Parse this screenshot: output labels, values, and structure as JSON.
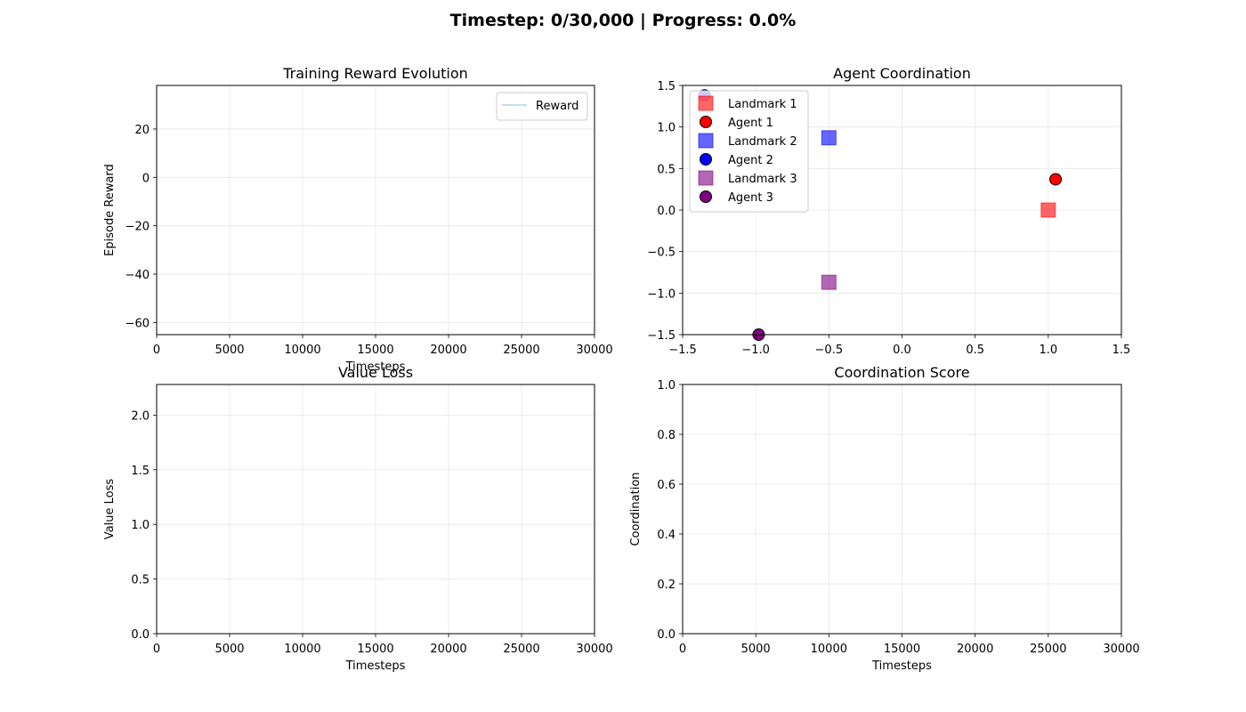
{
  "figure": {
    "suptitle": "Timestep: 0/30,000 | Progress: 0.0%"
  },
  "chart_data": [
    {
      "id": "reward",
      "type": "line",
      "title": "Training Reward Evolution",
      "xlabel": "Timesteps",
      "ylabel": "Episode Reward",
      "xlim": [
        0,
        30000
      ],
      "ylim": [
        -65,
        38
      ],
      "xticks": [
        0,
        5000,
        10000,
        15000,
        20000,
        25000,
        30000
      ],
      "yticks": [
        -60,
        -40,
        -20,
        0,
        20
      ],
      "grid": true,
      "legend_position": "upper-right",
      "series": [
        {
          "name": "Reward",
          "color": "#add8e6",
          "x": [],
          "y": []
        }
      ]
    },
    {
      "id": "coordination-map",
      "type": "scatter",
      "title": "Agent Coordination",
      "xlabel": "",
      "ylabel": "",
      "xlim": [
        -1.5,
        1.5
      ],
      "ylim": [
        -1.5,
        1.5
      ],
      "xticks": [
        -1.5,
        -1.0,
        -0.5,
        0.0,
        0.5,
        1.0,
        1.5
      ],
      "yticks": [
        -1.5,
        -1.0,
        -0.5,
        0.0,
        0.5,
        1.0,
        1.5
      ],
      "grid": true,
      "legend_position": "upper-left",
      "series": [
        {
          "name": "Landmark 1",
          "marker": "square",
          "color": "#ff0000",
          "alpha": 0.6,
          "x": [
            1.0
          ],
          "y": [
            0.0
          ]
        },
        {
          "name": "Agent 1",
          "marker": "circle",
          "color": "#ff0000",
          "alpha": 1.0,
          "x": [
            1.05
          ],
          "y": [
            0.37
          ]
        },
        {
          "name": "Landmark 2",
          "marker": "square",
          "color": "#0000ff",
          "alpha": 0.6,
          "x": [
            -0.5
          ],
          "y": [
            0.87
          ]
        },
        {
          "name": "Agent 2",
          "marker": "circle",
          "color": "#0000ff",
          "alpha": 1.0,
          "x": [
            -1.35
          ],
          "y": [
            1.38
          ]
        },
        {
          "name": "Landmark 3",
          "marker": "square",
          "color": "#800080",
          "alpha": 0.6,
          "x": [
            -0.5
          ],
          "y": [
            -0.87
          ]
        },
        {
          "name": "Agent 3",
          "marker": "circle",
          "color": "#800080",
          "alpha": 1.0,
          "x": [
            -0.98
          ],
          "y": [
            -1.5
          ]
        }
      ]
    },
    {
      "id": "value-loss",
      "type": "line",
      "title": "Value Loss",
      "xlabel": "Timesteps",
      "ylabel": "Value Loss",
      "xlim": [
        0,
        30000
      ],
      "ylim": [
        0,
        2.28
      ],
      "xticks": [
        0,
        5000,
        10000,
        15000,
        20000,
        25000,
        30000
      ],
      "yticks": [
        0.0,
        0.5,
        1.0,
        1.5,
        2.0
      ],
      "grid": true,
      "series": []
    },
    {
      "id": "coordination-score",
      "type": "line",
      "title": "Coordination Score",
      "xlabel": "Timesteps",
      "ylabel": "Coordination",
      "xlim": [
        0,
        30000
      ],
      "ylim": [
        0,
        1
      ],
      "xticks": [
        0,
        5000,
        10000,
        15000,
        20000,
        25000,
        30000
      ],
      "yticks": [
        0.0,
        0.2,
        0.4,
        0.6,
        0.8,
        1.0
      ],
      "grid": true,
      "series": []
    }
  ]
}
